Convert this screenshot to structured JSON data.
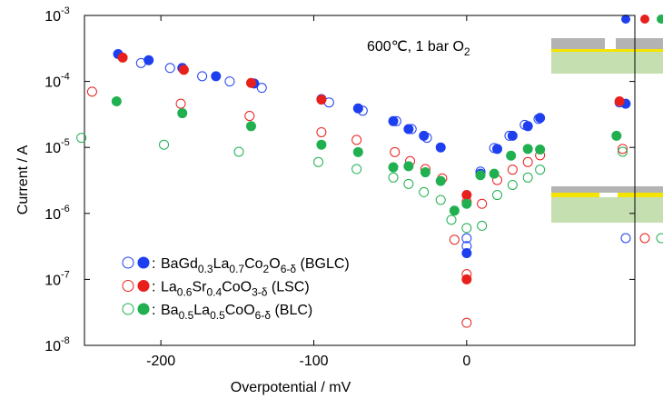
{
  "chart_data": {
    "type": "scatter",
    "x_label": "Overpotential / mV",
    "y_label": "Current / A",
    "annotation": [
      {
        "text": "600℃, 1 bar O"
      },
      {
        "text": "2",
        "sub": true
      }
    ],
    "xlim": [
      -250,
      110
    ],
    "xticks": [
      -200,
      -100,
      0
    ],
    "ylim": [
      1e-08,
      0.001
    ],
    "log_y": true,
    "yticks": [
      {
        "value": 1e-08,
        "label": "10",
        "exponent": "-8"
      },
      {
        "value": 1e-07,
        "label": "10",
        "exponent": "-7"
      },
      {
        "value": 1e-06,
        "label": "10",
        "exponent": "-6"
      },
      {
        "value": 1e-05,
        "label": "10",
        "exponent": "-5"
      },
      {
        "value": 0.0001,
        "label": "10",
        "exponent": "-4"
      },
      {
        "value": 0.001,
        "label": "10",
        "exponent": "-3"
      }
    ],
    "legend_separator": ":",
    "legend_position": "lower-left",
    "materials": [
      {
        "name": [
          {
            "text": "BaGd"
          },
          {
            "text": "0.3",
            "sub": true
          },
          {
            "text": "La"
          },
          {
            "text": "0.7",
            "sub": true
          },
          {
            "text": "Co"
          },
          {
            "text": "2",
            "sub": true
          },
          {
            "text": "O"
          },
          {
            "text": "6-δ",
            "sub": true
          },
          {
            "text": " (BGLC)"
          }
        ],
        "color": "#1e3ff0",
        "open": {
          "x": [
            -213,
            -194,
            -173,
            -155,
            -134,
            -90,
            -68,
            -46,
            -36,
            -26,
            0,
            0,
            9,
            18,
            28,
            38,
            47,
            100
          ],
          "values": [
            0.00019,
            0.00016,
            0.00012,
            0.0001,
            8e-05,
            4.8e-05,
            3.6e-05,
            2.5e-05,
            1.9e-05,
            1.4e-05,
            3.2e-07,
            4.2e-07,
            4.3e-06,
            9.8e-06,
            1.5e-05,
            2.2e-05,
            2.7e-05,
            4.8e-05
          ]
        },
        "filled": {
          "x": [
            -228,
            -208,
            -186,
            -164,
            -139,
            -95,
            -71,
            -48,
            -38,
            -28,
            -17,
            0,
            9,
            20,
            30,
            40,
            48,
            104
          ],
          "values": [
            0.00026,
            0.00021,
            0.00016,
            0.00012,
            9.3e-05,
            5.4e-05,
            3.9e-05,
            2.5e-05,
            1.9e-05,
            1.5e-05,
            1e-05,
            2.5e-07,
            4e-06,
            9.5e-06,
            1.5e-05,
            2.1e-05,
            2.8e-05,
            4.6e-05
          ]
        }
      },
      {
        "name": [
          {
            "text": "La"
          },
          {
            "text": "0.6",
            "sub": true
          },
          {
            "text": "Sr"
          },
          {
            "text": "0.4",
            "sub": true
          },
          {
            "text": "CoO"
          },
          {
            "text": "3-δ",
            "sub": true
          },
          {
            "text": " (LSC)"
          }
        ],
        "color": "#e8201c",
        "open": {
          "x": [
            -245,
            -187,
            -142,
            -95,
            -72,
            -47,
            -37,
            -27,
            -16,
            -8,
            0,
            0,
            0,
            10,
            20,
            30,
            40,
            48,
            102
          ],
          "values": [
            7e-05,
            4.6e-05,
            3e-05,
            1.7e-05,
            1.3e-05,
            8.5e-06,
            6.2e-06,
            4.7e-06,
            3.4e-06,
            4e-07,
            1.5e-06,
            1.2e-07,
            2.2e-08,
            1.4e-06,
            3.2e-06,
            4.6e-06,
            6e-06,
            7.6e-06,
            9.5e-06
          ]
        },
        "filled": {
          "x": [
            -225,
            -185,
            -141,
            -95,
            0,
            0,
            100
          ],
          "values": [
            0.00023,
            0.00015,
            9.5e-05,
            5.3e-05,
            1.9e-06,
            1e-07,
            5e-05
          ]
        }
      },
      {
        "name": [
          {
            "text": "Ba"
          },
          {
            "text": "0.5",
            "sub": true
          },
          {
            "text": "La"
          },
          {
            "text": "0.5",
            "sub": true
          },
          {
            "text": "CoO"
          },
          {
            "text": "6-δ",
            "sub": true
          },
          {
            "text": " (BLC)"
          }
        ],
        "color": "#20b050",
        "open": {
          "x": [
            -252,
            -198,
            -149,
            -97,
            -72,
            -48,
            -38,
            -28,
            -17,
            -10,
            0,
            10,
            20,
            30,
            40,
            48,
            102
          ],
          "values": [
            1.4e-05,
            1.1e-05,
            8.6e-06,
            6e-06,
            4.7e-06,
            3.5e-06,
            2.8e-06,
            2.1e-06,
            1.6e-06,
            8e-07,
            6e-07,
            6.5e-07,
            1.9e-06,
            2.7e-06,
            3.5e-06,
            4.6e-06,
            8.6e-06
          ]
        },
        "filled": {
          "x": [
            -229,
            -186,
            -141,
            -95,
            -71,
            -48,
            -38,
            -27,
            -17,
            -8,
            0,
            9,
            18,
            29,
            40,
            48,
            98
          ],
          "values": [
            5e-05,
            3.3e-05,
            2.1e-05,
            1.1e-05,
            8.5e-06,
            5e-06,
            5.2e-06,
            4.2e-06,
            3.1e-06,
            1.1e-06,
            1.4e-06,
            3.8e-06,
            4e-06,
            7.5e-06,
            9.5e-06,
            9.3e-06,
            1.5e-05
          ]
        }
      }
    ]
  }
}
